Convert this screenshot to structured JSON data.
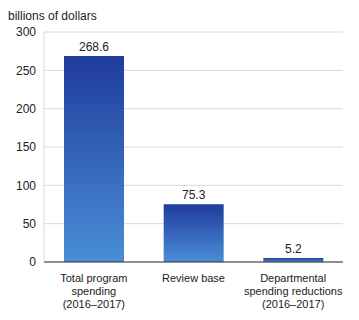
{
  "chart_data": {
    "type": "bar",
    "y_label": "billions of dollars",
    "categories": [
      "Total program\nspending\n(2016–2017)",
      "Review base",
      "Departmental\nspending reductions\n(2016–2017)"
    ],
    "values": [
      268.6,
      75.3,
      5.2
    ],
    "color": "#1f3c9c",
    "ylim": [
      0,
      300
    ],
    "yticks": [
      0,
      50,
      100,
      150,
      200,
      250,
      300
    ],
    "grid": true,
    "data_labels": true
  }
}
